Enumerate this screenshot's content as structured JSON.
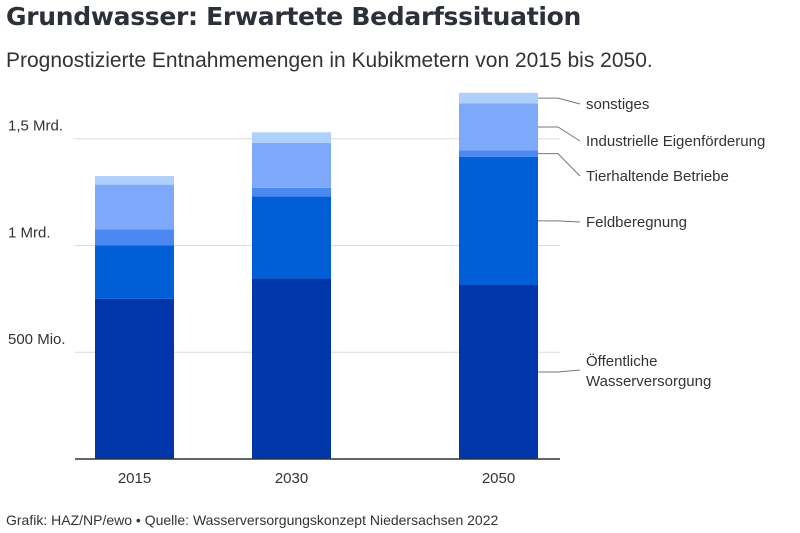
{
  "header": {
    "title": "Grundwasser: Erwartete Bedarfssituation",
    "subtitle": "Prognostizierte Entnahmemengen in Kubikmetern von 2015 bis 2050."
  },
  "footer": {
    "source": "Grafik: HAZ/NP/ewo • Quelle: Wasserversorgungskonzept Niedersachsen 2022"
  },
  "chart_data": {
    "type": "bar",
    "stacked": true,
    "categories": [
      "2015",
      "2030",
      "2050"
    ],
    "series": [
      {
        "name": "Öffentliche Wasserversorgung",
        "color": "#0036aa",
        "values": [
          750000000,
          845000000,
          815000000
        ]
      },
      {
        "name": "Feldberegnung",
        "color": "#005fd6",
        "values": [
          250000000,
          385000000,
          600000000
        ]
      },
      {
        "name": "Tierhaltende Betriebe",
        "color": "#4b88f2",
        "values": [
          75000000,
          40000000,
          30000000
        ]
      },
      {
        "name": "Industrielle Eigenförderung",
        "color": "#7ea8fa",
        "values": [
          210000000,
          210000000,
          220000000
        ]
      },
      {
        "name": "sonstiges",
        "color": "#b0d0fc",
        "values": [
          40000000,
          50000000,
          50000000
        ]
      }
    ],
    "y_axis": {
      "ylim": [
        0,
        1700000000
      ],
      "ticks": [
        {
          "value": 500000000,
          "label": "500 Mio."
        },
        {
          "value": 1000000000,
          "label": "1 Mrd."
        },
        {
          "value": 1500000000,
          "label": "1,5 Mrd."
        }
      ]
    },
    "grid": true,
    "legend": "right, labels pointing to the 2050 bar"
  }
}
